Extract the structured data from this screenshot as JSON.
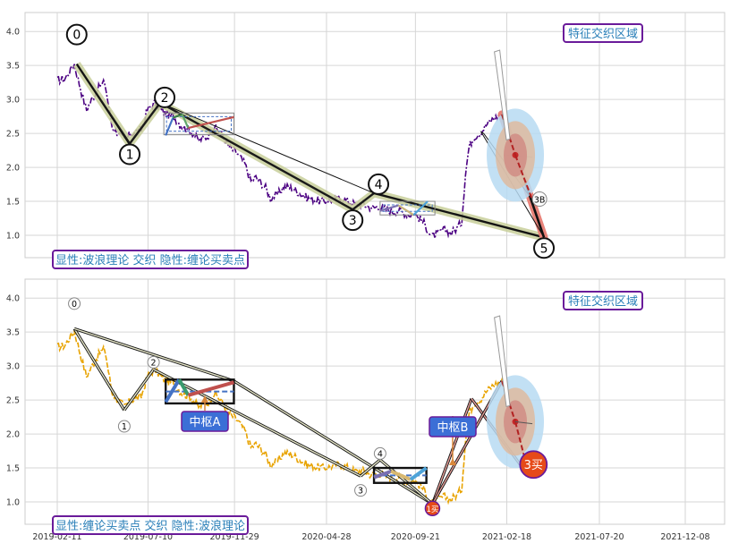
{
  "chart_data": [
    {
      "type": "line",
      "panel": "top",
      "caption": "显性:波浪理论 交织 隐性:缠论买卖点",
      "x_ticks": [
        "2019-02-11",
        "2019-07-10",
        "2019-11-29",
        "2020-04-28",
        "2020-09-21",
        "2021-02-18",
        "2021-07-20",
        "2021-12-08"
      ],
      "ylim": [
        0.75,
        4.2
      ],
      "y_ticks": [
        "1.0",
        "1.5",
        "2.0",
        "2.5",
        "3.0",
        "3.5",
        "4.0"
      ],
      "price_color": "#4b0082",
      "wave_points": [
        {
          "label": "0",
          "date": "2019-03-15",
          "value": 3.52
        },
        {
          "label": "1",
          "date": "2019-06-10",
          "value": 2.35
        },
        {
          "label": "2",
          "date": "2019-07-30",
          "value": 2.95
        },
        {
          "label": "3",
          "date": "2020-06-10",
          "value": 1.38
        },
        {
          "label": "4",
          "date": "2020-07-15",
          "value": 1.62
        },
        {
          "label": "5",
          "date": "2021-04-20",
          "value": 0.97
        }
      ],
      "forecast_label": "3B",
      "annotation": "特征交织区域"
    },
    {
      "type": "line",
      "panel": "bottom",
      "caption": "显性:缠论买卖点 交织 隐性:波浪理论",
      "x_ticks": [
        "2019-02-11",
        "2019-07-10",
        "2019-11-29",
        "2020-04-28",
        "2020-09-21",
        "2021-02-18",
        "2021-07-20",
        "2021-12-08"
      ],
      "ylim": [
        0.75,
        4.2
      ],
      "y_ticks": [
        "1.0",
        "1.5",
        "2.0",
        "2.5",
        "3.0",
        "3.5",
        "4.0"
      ],
      "price_color": "#e8a300",
      "wave_labels": [
        "0",
        "1",
        "2",
        "3",
        "4"
      ],
      "pivot_labels": {
        "a": "中枢A",
        "b": "中枢B"
      },
      "buy_points": {
        "first": "1买",
        "third": "3买"
      },
      "annotation": "特征交织区域"
    }
  ]
}
